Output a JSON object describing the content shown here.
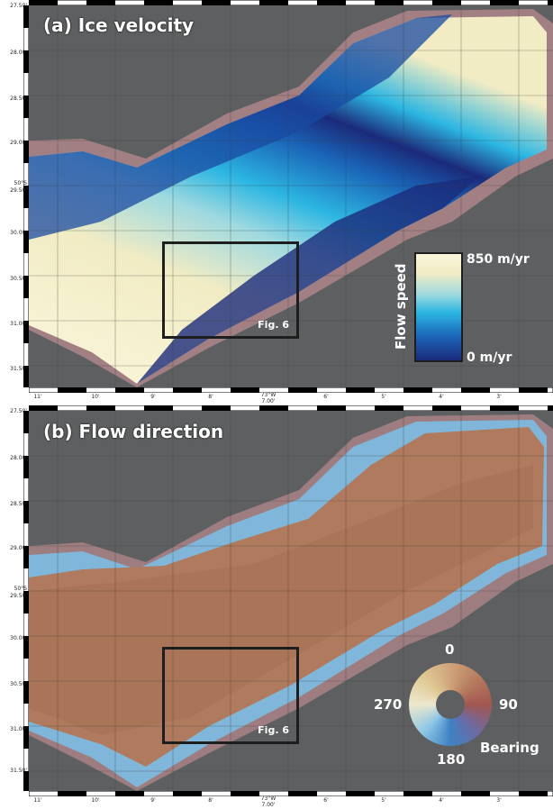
{
  "panel_a": {
    "title": "(a) Ice velocity",
    "y_ticks": [
      "27.50'",
      "28.00'",
      "28.50'",
      "29.00'",
      "50°S\n29.50'",
      "30.00'",
      "30.50'",
      "31.00'",
      "31.50'"
    ],
    "x_ticks": [
      "11'",
      "10'",
      "9'",
      "8'",
      "73°W\n7.00'",
      "6'",
      "5'",
      "4'",
      "3'"
    ],
    "box_label": "Fig. 6",
    "legend": {
      "title": "Flow speed",
      "max_label": "850 m/yr",
      "min_label": "0 m/yr"
    }
  },
  "panel_b": {
    "title": "(b) Flow direction",
    "y_ticks": [
      "27.50'",
      "28.00'",
      "28.50'",
      "29.00'",
      "50°S\n29.50'",
      "30.00'",
      "30.50'",
      "31.00'",
      "31.50'"
    ],
    "x_ticks": [
      "11'",
      "10'",
      "9'",
      "8'",
      "73°W\n7.00'",
      "6'",
      "5'",
      "4'",
      "3'"
    ],
    "box_label": "Fig. 6",
    "legend": {
      "north": "0",
      "east": "90",
      "south": "180",
      "west": "270",
      "title": "Bearing"
    }
  },
  "colors": {
    "background": "#5d5f60",
    "speed_high": "#fbf6dc",
    "speed_mid": "#2cb6e2",
    "speed_low": "#1b2a7a",
    "direction_main": "#b07a5e"
  }
}
